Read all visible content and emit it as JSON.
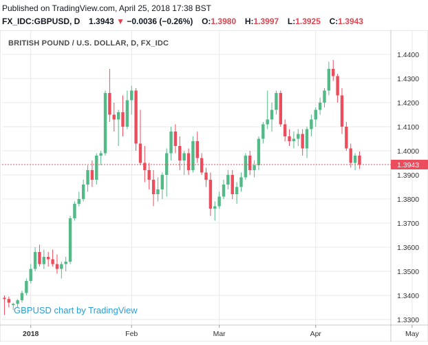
{
  "header": {
    "published": "Published on TradingView.com, April 25, 2018 17:38 BST",
    "symbol": "FX_IDC:GBPUSD, D",
    "last": "1.3943",
    "change": "−0.0036 (−0.26%)",
    "open_label": "O:",
    "open": "1.3980",
    "high_label": "H:",
    "high": "1.3997",
    "low_label": "L:",
    "low": "1.3925",
    "close_label": "C:",
    "close": "1.3943"
  },
  "chart_data": {
    "type": "candlestick",
    "title": "BRITISH POUND / U.S. DOLLAR, D, FX_IDC",
    "watermark": "GBPUSD chart by TradingView",
    "ylim": [
      1.326,
      1.446
    ],
    "yticks": [
      "1.4400",
      "1.4300",
      "1.4200",
      "1.4100",
      "1.4000",
      "1.3900",
      "1.3800",
      "1.3700",
      "1.3600",
      "1.3500",
      "1.3400",
      "1.3300"
    ],
    "xlabels": [
      {
        "label": "2018",
        "index": 6
      },
      {
        "label": "Feb",
        "index": 29
      },
      {
        "label": "Mar",
        "index": 49
      },
      {
        "label": "Apr",
        "index": 71
      },
      {
        "label": "May",
        "index": 93
      }
    ],
    "last_price": 1.3943,
    "last_price_label": "1.3943",
    "colors": {
      "up": "#53b987",
      "down": "#eb4d5c",
      "price_line": "#eb4d5c",
      "grid": "#e8e8e8"
    },
    "candles": [
      {
        "o": 1.339,
        "h": 1.34,
        "l": 1.332,
        "c": 1.3385
      },
      {
        "o": 1.3385,
        "h": 1.3395,
        "l": 1.335,
        "c": 1.337
      },
      {
        "o": 1.336,
        "h": 1.337,
        "l": 1.334,
        "c": 1.3365
      },
      {
        "o": 1.3365,
        "h": 1.3385,
        "l": 1.335,
        "c": 1.338
      },
      {
        "o": 1.338,
        "h": 1.342,
        "l": 1.337,
        "c": 1.341
      },
      {
        "o": 1.341,
        "h": 1.347,
        "l": 1.34,
        "c": 1.346
      },
      {
        "o": 1.346,
        "h": 1.353,
        "l": 1.345,
        "c": 1.351
      },
      {
        "o": 1.351,
        "h": 1.36,
        "l": 1.35,
        "c": 1.358
      },
      {
        "o": 1.358,
        "h": 1.361,
        "l": 1.352,
        "c": 1.353
      },
      {
        "o": 1.353,
        "h": 1.359,
        "l": 1.351,
        "c": 1.356
      },
      {
        "o": 1.356,
        "h": 1.358,
        "l": 1.352,
        "c": 1.355
      },
      {
        "o": 1.355,
        "h": 1.359,
        "l": 1.352,
        "c": 1.353
      },
      {
        "o": 1.353,
        "h": 1.357,
        "l": 1.349,
        "c": 1.351
      },
      {
        "o": 1.351,
        "h": 1.354,
        "l": 1.347,
        "c": 1.353
      },
      {
        "o": 1.353,
        "h": 1.356,
        "l": 1.35,
        "c": 1.354
      },
      {
        "o": 1.354,
        "h": 1.373,
        "l": 1.353,
        "c": 1.372
      },
      {
        "o": 1.372,
        "h": 1.379,
        "l": 1.371,
        "c": 1.378
      },
      {
        "o": 1.378,
        "h": 1.383,
        "l": 1.377,
        "c": 1.38
      },
      {
        "o": 1.38,
        "h": 1.388,
        "l": 1.379,
        "c": 1.386
      },
      {
        "o": 1.386,
        "h": 1.394,
        "l": 1.383,
        "c": 1.392
      },
      {
        "o": 1.392,
        "h": 1.396,
        "l": 1.385,
        "c": 1.388
      },
      {
        "o": 1.388,
        "h": 1.399,
        "l": 1.386,
        "c": 1.398
      },
      {
        "o": 1.398,
        "h": 1.4,
        "l": 1.394,
        "c": 1.399
      },
      {
        "o": 1.399,
        "h": 1.425,
        "l": 1.398,
        "c": 1.424
      },
      {
        "o": 1.424,
        "h": 1.434,
        "l": 1.412,
        "c": 1.415
      },
      {
        "o": 1.415,
        "h": 1.42,
        "l": 1.408,
        "c": 1.413
      },
      {
        "o": 1.413,
        "h": 1.417,
        "l": 1.402,
        "c": 1.416
      },
      {
        "o": 1.416,
        "h": 1.423,
        "l": 1.406,
        "c": 1.41
      },
      {
        "o": 1.41,
        "h": 1.425,
        "l": 1.409,
        "c": 1.421
      },
      {
        "o": 1.421,
        "h": 1.427,
        "l": 1.415,
        "c": 1.425
      },
      {
        "o": 1.425,
        "h": 1.426,
        "l": 1.4,
        "c": 1.403
      },
      {
        "o": 1.403,
        "h": 1.417,
        "l": 1.394,
        "c": 1.395
      },
      {
        "o": 1.395,
        "h": 1.402,
        "l": 1.387,
        "c": 1.392
      },
      {
        "o": 1.392,
        "h": 1.395,
        "l": 1.384,
        "c": 1.388
      },
      {
        "o": 1.388,
        "h": 1.392,
        "l": 1.377,
        "c": 1.382
      },
      {
        "o": 1.382,
        "h": 1.389,
        "l": 1.379,
        "c": 1.384
      },
      {
        "o": 1.384,
        "h": 1.391,
        "l": 1.38,
        "c": 1.39
      },
      {
        "o": 1.39,
        "h": 1.401,
        "l": 1.381,
        "c": 1.399
      },
      {
        "o": 1.399,
        "h": 1.41,
        "l": 1.396,
        "c": 1.408
      },
      {
        "o": 1.408,
        "h": 1.411,
        "l": 1.399,
        "c": 1.402
      },
      {
        "o": 1.402,
        "h": 1.406,
        "l": 1.392,
        "c": 1.396
      },
      {
        "o": 1.396,
        "h": 1.4,
        "l": 1.39,
        "c": 1.399
      },
      {
        "o": 1.399,
        "h": 1.401,
        "l": 1.39,
        "c": 1.392
      },
      {
        "o": 1.392,
        "h": 1.406,
        "l": 1.391,
        "c": 1.404
      },
      {
        "o": 1.404,
        "h": 1.408,
        "l": 1.395,
        "c": 1.397
      },
      {
        "o": 1.397,
        "h": 1.399,
        "l": 1.39,
        "c": 1.391
      },
      {
        "o": 1.391,
        "h": 1.393,
        "l": 1.385,
        "c": 1.388
      },
      {
        "o": 1.388,
        "h": 1.391,
        "l": 1.373,
        "c": 1.376
      },
      {
        "o": 1.376,
        "h": 1.379,
        "l": 1.371,
        "c": 1.377
      },
      {
        "o": 1.377,
        "h": 1.383,
        "l": 1.376,
        "c": 1.381
      },
      {
        "o": 1.381,
        "h": 1.388,
        "l": 1.38,
        "c": 1.386
      },
      {
        "o": 1.386,
        "h": 1.392,
        "l": 1.384,
        "c": 1.39
      },
      {
        "o": 1.39,
        "h": 1.392,
        "l": 1.38,
        "c": 1.382
      },
      {
        "o": 1.382,
        "h": 1.387,
        "l": 1.378,
        "c": 1.385
      },
      {
        "o": 1.385,
        "h": 1.391,
        "l": 1.383,
        "c": 1.389
      },
      {
        "o": 1.389,
        "h": 1.399,
        "l": 1.388,
        "c": 1.398
      },
      {
        "o": 1.398,
        "h": 1.4,
        "l": 1.39,
        "c": 1.392
      },
      {
        "o": 1.392,
        "h": 1.396,
        "l": 1.389,
        "c": 1.394
      },
      {
        "o": 1.394,
        "h": 1.406,
        "l": 1.392,
        "c": 1.405
      },
      {
        "o": 1.405,
        "h": 1.412,
        "l": 1.403,
        "c": 1.411
      },
      {
        "o": 1.411,
        "h": 1.425,
        "l": 1.409,
        "c": 1.413
      },
      {
        "o": 1.413,
        "h": 1.42,
        "l": 1.408,
        "c": 1.417
      },
      {
        "o": 1.417,
        "h": 1.425,
        "l": 1.415,
        "c": 1.424
      },
      {
        "o": 1.424,
        "h": 1.425,
        "l": 1.41,
        "c": 1.411
      },
      {
        "o": 1.411,
        "h": 1.413,
        "l": 1.404,
        "c": 1.406
      },
      {
        "o": 1.406,
        "h": 1.409,
        "l": 1.402,
        "c": 1.404
      },
      {
        "o": 1.404,
        "h": 1.408,
        "l": 1.401,
        "c": 1.405
      },
      {
        "o": 1.405,
        "h": 1.409,
        "l": 1.402,
        "c": 1.407
      },
      {
        "o": 1.407,
        "h": 1.409,
        "l": 1.398,
        "c": 1.401
      },
      {
        "o": 1.401,
        "h": 1.41,
        "l": 1.397,
        "c": 1.409
      },
      {
        "o": 1.409,
        "h": 1.415,
        "l": 1.406,
        "c": 1.413
      },
      {
        "o": 1.413,
        "h": 1.418,
        "l": 1.41,
        "c": 1.417
      },
      {
        "o": 1.417,
        "h": 1.422,
        "l": 1.415,
        "c": 1.42
      },
      {
        "o": 1.42,
        "h": 1.426,
        "l": 1.418,
        "c": 1.425
      },
      {
        "o": 1.425,
        "h": 1.437,
        "l": 1.423,
        "c": 1.434
      },
      {
        "o": 1.434,
        "h": 1.4377,
        "l": 1.429,
        "c": 1.431
      },
      {
        "o": 1.431,
        "h": 1.432,
        "l": 1.42,
        "c": 1.423
      },
      {
        "o": 1.423,
        "h": 1.426,
        "l": 1.407,
        "c": 1.41
      },
      {
        "o": 1.41,
        "h": 1.412,
        "l": 1.4,
        "c": 1.401
      },
      {
        "o": 1.401,
        "h": 1.403,
        "l": 1.393,
        "c": 1.395
      },
      {
        "o": 1.395,
        "h": 1.399,
        "l": 1.392,
        "c": 1.398
      },
      {
        "o": 1.398,
        "h": 1.3997,
        "l": 1.3925,
        "c": 1.3943
      }
    ]
  }
}
